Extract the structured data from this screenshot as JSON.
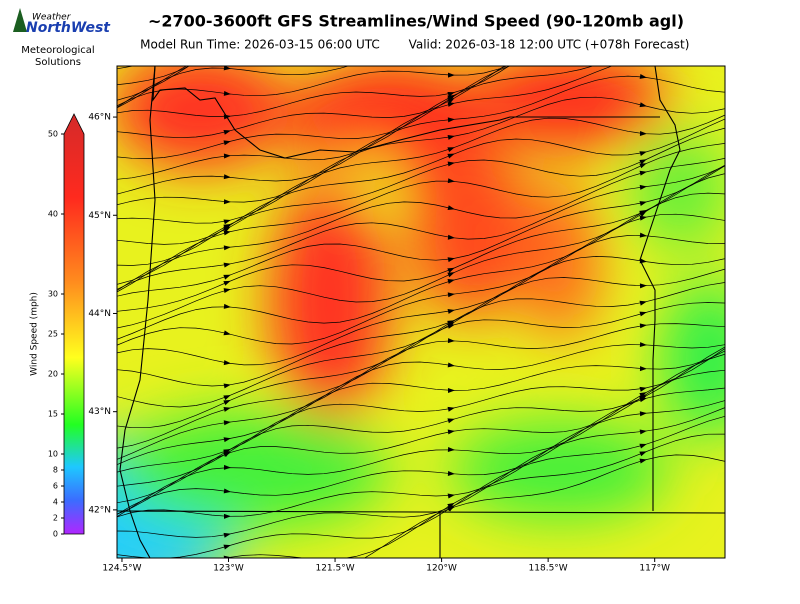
{
  "header": {
    "title": "~2700-3600ft GFS Streamlines/Wind Speed (90-120mb agl)",
    "model_run": "Model Run Time: 2026-03-15 06:00 UTC",
    "valid": "Valid: 2026-03-18 12:00 UTC  (+078h Forecast)"
  },
  "logo": {
    "top": "Weather",
    "main": "NorthWest",
    "tagline": [
      "Meteorological",
      "Solutions"
    ]
  },
  "colorbar": {
    "label": "Wind Speed (mph)",
    "lim": [
      0,
      50
    ],
    "ticks": [
      0,
      2,
      4,
      6,
      8,
      10,
      15,
      20,
      25,
      30,
      40,
      50
    ],
    "extend": "max"
  },
  "map": {
    "xlim": [
      -124.57,
      -116.01
    ],
    "ylim": [
      41.51,
      46.52
    ],
    "xticks": [
      {
        "value": -124.5,
        "label": "124.5°W"
      },
      {
        "value": -123,
        "label": "123°W"
      },
      {
        "value": -121.5,
        "label": "121.5°W"
      },
      {
        "value": -120,
        "label": "120°W"
      },
      {
        "value": -118.5,
        "label": "118.5°W"
      },
      {
        "value": -117,
        "label": "117°W"
      }
    ],
    "yticks": [
      {
        "value": 42,
        "label": "42°N"
      },
      {
        "value": 43,
        "label": "43°N"
      },
      {
        "value": 44,
        "label": "44°N"
      },
      {
        "value": 45,
        "label": "45°N"
      },
      {
        "value": 46,
        "label": "46°N"
      }
    ]
  }
}
